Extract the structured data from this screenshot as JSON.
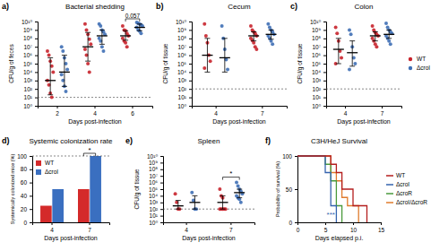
{
  "chart_data": [
    {
      "type": "strip",
      "panel": "a)",
      "title": "Bacterial shedding",
      "x_label": "Days post-infection",
      "y_label": "CFU/g of feces",
      "categories": [
        "2",
        "4",
        "6"
      ],
      "log": "y",
      "ylim": [
        1,
        10000000000.0
      ],
      "yticks": [
        {
          "value": 1,
          "label": "10⁰"
        },
        {
          "value": 10,
          "label": "10¹"
        },
        {
          "value": 100,
          "label": "10²"
        },
        {
          "value": 1000,
          "label": "10³"
        },
        {
          "value": 10000,
          "label": "10⁴"
        },
        {
          "value": 100000,
          "label": "10⁵"
        },
        {
          "value": 1000000,
          "label": "10⁶"
        },
        {
          "value": 10000000,
          "label": "10⁷"
        },
        {
          "value": 100000000,
          "label": "10⁸"
        },
        {
          "value": 1000000000,
          "label": "10⁹"
        },
        {
          "value": 10000000000,
          "label": "10¹⁰"
        }
      ],
      "detection_limit": 10,
      "series": [
        {
          "color": "#c8232c",
          "values": [
            [
              3000000.0,
              1000000.0,
              200000.0,
              50000.0,
              10000.0,
              1000.0,
              300.0,
              30,
              10
            ],
            [
              5000000000.0,
              1000000000.0,
              300000000.0,
              80000000.0,
              20000000.0,
              5000000.0,
              1000000.0,
              100000.0,
              10000.0
            ],
            [
              3000000000.0,
              1000000000.0,
              800000000.0,
              400000000.0,
              200000000.0,
              100000000.0,
              50000000.0,
              30000000.0,
              10000000.0
            ]
          ],
          "mean": [
            1000.0,
            10000000.0,
            200000000.0
          ],
          "error": [
            [
              20,
              500000.0
            ],
            [
              200000.0,
              500000000.0
            ],
            [
              60000000.0,
              800000000.0
            ]
          ]
        },
        {
          "color": "#3f6fb5",
          "values": [
            [
              10000000.0,
              3000000.0,
              500000.0,
              100000.0,
              20000.0,
              5000.0,
              1000.0,
              200.0,
              50
            ],
            [
              5000000000.0,
              3000000000.0,
              1000000000.0,
              600000000.0,
              300000000.0,
              100000000.0,
              50000000.0,
              10000000.0,
              3000000.0
            ],
            [
              8000000000.0,
              6000000000.0,
              5000000000.0,
              4000000000.0,
              3000000000.0,
              2000000000.0,
              1000000000.0,
              700000000.0,
              400000000.0
            ]
          ],
          "mean": [
            10000.0,
            200000000.0,
            2000000000.0
          ],
          "error": [
            [
              200.0,
              1000000.0
            ],
            [
              20000000.0,
              1000000000.0
            ],
            [
              800000000.0,
              5000000000.0
            ]
          ]
        }
      ],
      "annotations": [
        {
          "text": "0.057",
          "x": "6"
        }
      ]
    },
    {
      "type": "strip",
      "panel": "b)",
      "title": "Cecum",
      "x_label": "Days post-infection",
      "y_label": "CFU/g of tissue",
      "categories": [
        "4",
        "7"
      ],
      "log": "y",
      "ylim": [
        1,
        10000000000.0
      ],
      "yticks": [
        {
          "value": 1,
          "label": "10⁰"
        },
        {
          "value": 10,
          "label": "10¹"
        },
        {
          "value": 100,
          "label": "10²"
        },
        {
          "value": 1000,
          "label": "10³"
        },
        {
          "value": 10000,
          "label": "10⁴"
        },
        {
          "value": 100000,
          "label": "10⁵"
        },
        {
          "value": 1000000,
          "label": "10⁶"
        },
        {
          "value": 10000000,
          "label": "10⁷"
        },
        {
          "value": 100000000,
          "label": "10⁸"
        },
        {
          "value": 1000000000,
          "label": "10⁹"
        },
        {
          "value": 10000000000,
          "label": "10¹⁰"
        }
      ],
      "detection_limit": 100,
      "series": [
        {
          "color": "#c8232c",
          "values": [
            [
              5000000000.0,
              200000000.0,
              30000000.0,
              1000000.0,
              200000.0,
              30000.0
            ],
            [
              3000000000.0,
              1000000000.0,
              600000000.0,
              400000000.0,
              200000000.0,
              100000000.0,
              60000000.0,
              30000000.0,
              10000000.0,
              5000000.0
            ]
          ],
          "mean": [
            1000000.0,
            200000000.0
          ],
          "error": [
            [
              10000.0,
              100000000.0
            ],
            [
              50000000.0,
              600000000.0
            ]
          ]
        },
        {
          "color": "#3f6fb5",
          "values": [
            [
              3000000000.0,
              100000000.0,
              5000000.0,
              300000.0,
              20000.0
            ],
            [
              5000000000.0,
              2000000000.0,
              1000000000.0,
              600000000.0,
              300000000.0,
              200000000.0,
              100000000.0,
              50000000.0,
              20000000.0
            ]
          ],
          "mean": [
            500000.0,
            300000000.0
          ],
          "error": [
            [
              10000.0,
              100000000.0
            ],
            [
              80000000.0,
              1000000000.0
            ]
          ]
        }
      ]
    },
    {
      "type": "strip",
      "panel": "c)",
      "title": "Colon",
      "x_label": "Days post-infection",
      "y_label": "CFU/g of tissue",
      "categories": [
        "4",
        "7"
      ],
      "log": "y",
      "ylim": [
        1,
        10000000000.0
      ],
      "yticks": [
        {
          "value": 1,
          "label": "10⁰"
        },
        {
          "value": 10,
          "label": "10¹"
        },
        {
          "value": 100,
          "label": "10²"
        },
        {
          "value": 1000,
          "label": "10³"
        },
        {
          "value": 10000,
          "label": "10⁴"
        },
        {
          "value": 100000,
          "label": "10⁵"
        },
        {
          "value": 1000000,
          "label": "10⁶"
        },
        {
          "value": 10000000,
          "label": "10⁷"
        },
        {
          "value": 100000000,
          "label": "10⁸"
        },
        {
          "value": 1000000000,
          "label": "10⁹"
        },
        {
          "value": 10000000000,
          "label": "10¹⁰"
        }
      ],
      "detection_limit": 100,
      "legend": "right",
      "series": [
        {
          "name": "WT",
          "color": "#c8232c",
          "values": [
            [
              2000000000.0,
              400000000.0,
              50000000.0,
              3000000.0,
              500000.0,
              100000.0
            ],
            [
              3000000000.0,
              1000000000.0,
              500000000.0,
              300000000.0,
              200000000.0,
              100000000.0,
              50000000.0,
              20000000.0,
              10000000.0
            ]
          ],
          "mean": [
            5000000.0,
            200000000.0
          ],
          "error": [
            [
              100000.0,
              100000000.0
            ],
            [
              50000000.0,
              600000000.0
            ]
          ]
        },
        {
          "name": "ΔcroI",
          "color": "#3f6fb5",
          "values": [
            [
              1000000000.0,
              300000000.0,
              10000000.0,
              500000.0,
              100000.0,
              20000.0
            ],
            [
              6000000000.0,
              2000000000.0,
              1000000000.0,
              600000000.0,
              400000000.0,
              200000000.0,
              100000000.0,
              50000000.0,
              20000000.0
            ]
          ],
          "mean": [
            2000000.0,
            300000000.0
          ],
          "error": [
            [
              50000.0,
              50000000.0
            ],
            [
              100000000.0,
              1000000000.0
            ]
          ]
        }
      ]
    },
    {
      "type": "bar",
      "panel": "d)",
      "title": "Systemic colonization rate",
      "x_label": "Days post-infection",
      "y_label": "Systemically colonized mice (%)",
      "categories": [
        "4",
        "7"
      ],
      "ylim": [
        0,
        100
      ],
      "yticks": [
        0,
        20,
        40,
        60,
        80,
        100
      ],
      "reference_line": 100,
      "legend": "top-left",
      "series": [
        {
          "name": "WT",
          "color": "#d42a2a",
          "values": [
            25,
            50
          ]
        },
        {
          "name": "ΔcroI",
          "color": "#3a6fc0",
          "values": [
            50,
            100
          ]
        }
      ],
      "annotations": [
        {
          "text": "*",
          "x": "7"
        }
      ]
    },
    {
      "type": "strip",
      "panel": "e)",
      "title": "Spleen",
      "x_label": "Days post-infection",
      "y_label": "CFU/g of tissue",
      "categories": [
        "4",
        "7"
      ],
      "log": "y",
      "ylim": [
        1,
        10000000000.0
      ],
      "yticks": [
        {
          "value": 1,
          "label": "10⁰"
        },
        {
          "value": 10,
          "label": "10¹"
        },
        {
          "value": 100,
          "label": "10²"
        },
        {
          "value": 1000,
          "label": "10³"
        },
        {
          "value": 10000,
          "label": "10⁴"
        },
        {
          "value": 100000,
          "label": "10⁵"
        },
        {
          "value": 1000000,
          "label": "10⁶"
        },
        {
          "value": 10000000,
          "label": "10⁷"
        },
        {
          "value": 100000000,
          "label": "10⁸"
        },
        {
          "value": 1000000000,
          "label": "10⁹"
        },
        {
          "value": 10000000000,
          "label": "10¹⁰"
        }
      ],
      "detection_limit": 100,
      "series": [
        {
          "color": "#c8232c",
          "values": [
            [
              20000.0,
              1000.0,
              100,
              100
            ],
            [
              100000.0,
              10000.0,
              5000.0,
              100,
              100,
              100,
              100,
              100
            ]
          ],
          "mean": [
            300.0,
            1000.0
          ],
          "error": [
            [
              100,
              2000.0
            ],
            [
              100,
              10000.0
            ]
          ]
        },
        {
          "color": "#3f6fb5",
          "values": [
            [
              30000.0,
              2000.0,
              100,
              100
            ],
            [
              1000000.0,
              300000.0,
              100000.0,
              50000.0,
              20000.0,
              10000.0,
              5000.0,
              3000.0,
              1000.0
            ]
          ],
          "mean": [
            1000.0,
            30000.0
          ],
          "error": [
            [
              100,
              10000.0
            ],
            [
              5000.0,
              100000.0
            ]
          ]
        }
      ],
      "annotations": [
        {
          "text": "*",
          "x": "7"
        }
      ]
    },
    {
      "type": "line",
      "line_style": "step",
      "panel": "f)",
      "title": "C3H/HeJ Survival",
      "x_label": "Days elapsed p.i.",
      "y_label": "Probability of survival (%)",
      "xlim": [
        0,
        15
      ],
      "xticks": [
        0,
        5,
        10,
        15
      ],
      "ylim": [
        0,
        100
      ],
      "yticks": [
        0,
        50,
        100
      ],
      "legend": "right",
      "series": [
        {
          "name": "WT",
          "color": "#b41e1e",
          "x": [
            0,
            6,
            7,
            8,
            10,
            12.5
          ],
          "values": [
            100,
            87.5,
            75,
            50,
            25,
            0
          ]
        },
        {
          "name": "ΔcroI",
          "color": "#3563ae",
          "x": [
            0,
            5,
            6,
            7
          ],
          "values": [
            100,
            75,
            25,
            0
          ]
        },
        {
          "name": "ΔcroR",
          "color": "#4a9a3c",
          "x": [
            0,
            5,
            6,
            7,
            8
          ],
          "values": [
            100,
            87.5,
            62.5,
            25,
            0
          ]
        },
        {
          "name": "ΔcroI/ΔcroR",
          "color": "#e07b2c",
          "x": [
            0,
            6,
            7,
            8,
            9,
            11
          ],
          "values": [
            100,
            75,
            62.5,
            37.5,
            25,
            0
          ]
        }
      ],
      "annotations": [
        {
          "text": "***",
          "x": 6,
          "y": 8,
          "color": "#3563ae"
        }
      ]
    }
  ]
}
